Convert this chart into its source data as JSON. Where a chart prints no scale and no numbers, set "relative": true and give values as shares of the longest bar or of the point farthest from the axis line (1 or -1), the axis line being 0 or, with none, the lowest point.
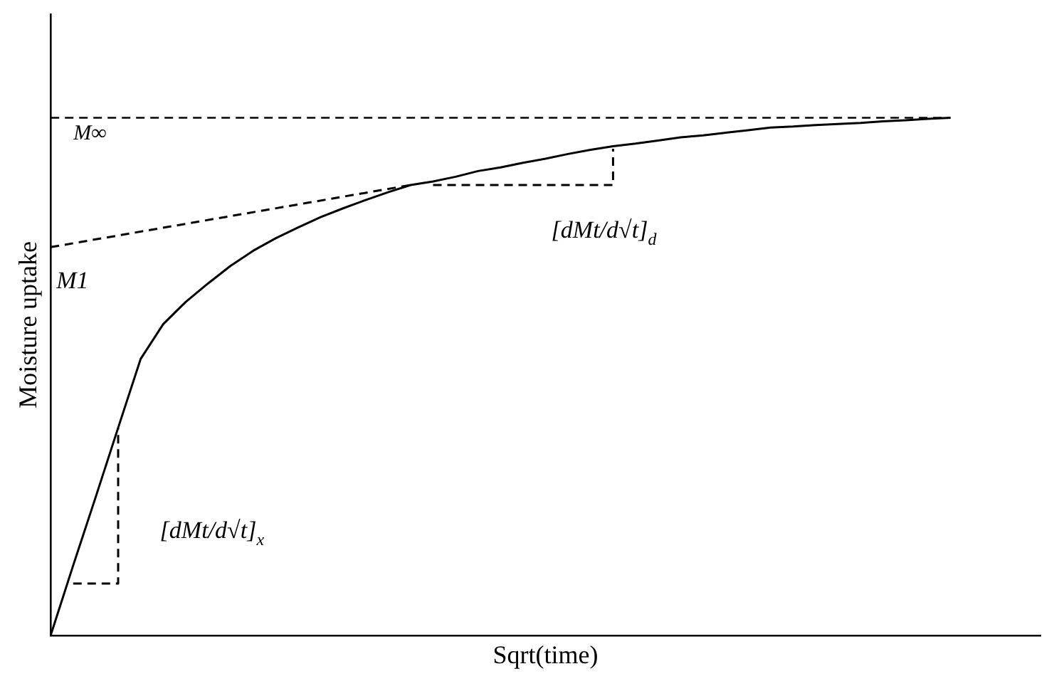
{
  "chart_data": {
    "type": "line",
    "relative": true,
    "xlabel": "Sqrt(time)",
    "ylabel": "Moisture uptake",
    "legend": false,
    "grid": false,
    "categories": [
      null,
      null,
      null,
      null,
      null,
      null,
      null,
      null,
      null,
      null,
      null,
      null,
      null,
      null,
      null,
      null,
      null,
      null,
      null,
      null,
      null,
      null,
      null,
      null,
      null,
      null,
      null,
      null,
      null,
      null,
      null,
      null,
      null,
      null,
      null,
      null,
      null,
      null,
      null,
      null,
      null,
      null,
      null,
      null,
      null
    ],
    "series": [
      {
        "color": "#000000",
        "line_style": "solid",
        "values": [
          0,
          0.135,
          0.267,
          0.401,
          0.534,
          0.601,
          0.644,
          0.68,
          0.714,
          0.743,
          0.767,
          0.788,
          0.808,
          0.825,
          0.841,
          0.856,
          0.87,
          0.877,
          0.886,
          0.897,
          0.904,
          0.913,
          0.921,
          0.93,
          0.938,
          0.945,
          0.95,
          0.956,
          0.962,
          0.966,
          0.971,
          0.976,
          0.981,
          0.983,
          0.986,
          0.988,
          0.99,
          0.993,
          0.995,
          0.998,
          1,
          null,
          null,
          null,
          null
        ]
      },
      {
        "type": "line",
        "color": "#000000",
        "line_style": "dashed",
        "values": [
          0.75,
          null,
          null,
          null,
          null,
          null,
          null,
          null,
          null,
          null,
          null,
          null,
          null,
          null,
          null,
          null,
          0.87,
          null,
          null,
          null,
          null,
          null,
          null,
          null,
          null,
          null,
          null,
          null,
          null,
          null,
          null,
          null,
          null,
          null,
          null,
          null,
          null,
          null,
          null,
          null,
          null,
          null,
          null,
          null,
          null
        ]
      },
      {
        "type": "step",
        "color": "#000000",
        "line_style": "dashed",
        "values": [
          null,
          0.1,
          null,
          0.4,
          null,
          null,
          null,
          null,
          null,
          null,
          null,
          null,
          null,
          null,
          null,
          null,
          null,
          null,
          null,
          null,
          null,
          null,
          null,
          null,
          null,
          null,
          null,
          null,
          null,
          null,
          null,
          null,
          null,
          null,
          null,
          null,
          null,
          null,
          null,
          null,
          null,
          null,
          null,
          null,
          null
        ]
      },
      {
        "type": "step",
        "color": "#000000",
        "line_style": "dashed",
        "values": [
          null,
          null,
          null,
          null,
          null,
          null,
          null,
          null,
          null,
          null,
          null,
          null,
          null,
          null,
          null,
          null,
          null,
          0.87,
          null,
          null,
          null,
          null,
          null,
          null,
          null,
          0.94,
          null,
          null,
          null,
          null,
          null,
          null,
          null,
          null,
          null,
          null,
          null,
          null,
          null,
          null,
          null,
          null,
          null,
          null,
          null
        ]
      }
    ],
    "ref_lines": [
      {
        "axis": "y",
        "value": 1,
        "label": "M∞",
        "color": "#000000",
        "line_style": "dashed"
      }
    ],
    "annotations": [
      "M1",
      "[dMt/d√t]$_{x}$",
      "[dMt/d√t]$_{d}$"
    ],
    "marker": "none"
  }
}
